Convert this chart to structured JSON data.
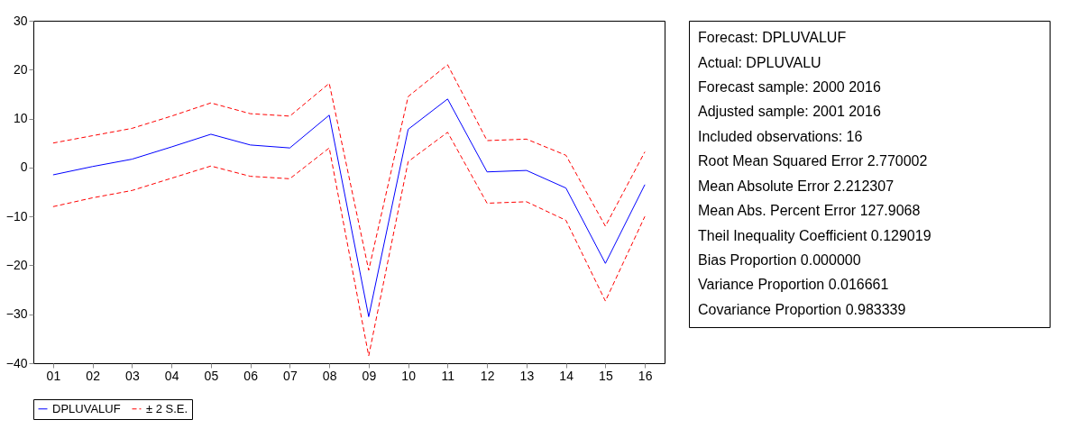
{
  "chart_data": {
    "type": "line",
    "categories": [
      "01",
      "02",
      "03",
      "04",
      "05",
      "06",
      "07",
      "08",
      "09",
      "10",
      "11",
      "12",
      "13",
      "14",
      "15",
      "16"
    ],
    "series": [
      {
        "name": "DPLUVALUF",
        "color": "#0000ff",
        "line_style": "solid",
        "values": [
          -1.5,
          0.2,
          1.7,
          4.2,
          6.8,
          4.6,
          4.0,
          10.7,
          -30.5,
          7.8,
          14.0,
          -0.9,
          -0.6,
          -4.2,
          -19.6,
          -3.5
        ]
      },
      {
        "name": "± 2 S.E.",
        "color": "#ff0000",
        "line_style": "dashed",
        "values": [
          5.0,
          6.5,
          8.0,
          10.5,
          13.2,
          11.0,
          10.5,
          17.2,
          -21.0,
          14.5,
          21.0,
          5.5,
          5.8,
          2.5,
          -12.0,
          3.2
        ]
      },
      {
        "color": "#ff0000",
        "line_style": "dashed",
        "values": [
          -8.0,
          -6.2,
          -4.7,
          -2.2,
          0.3,
          -1.8,
          -2.3,
          4.0,
          -38.5,
          1.2,
          7.2,
          -7.3,
          -7.0,
          -10.8,
          -27.3,
          -10.0
        ]
      }
    ],
    "ylim": [
      -40,
      30
    ],
    "yticks": [
      -40,
      -30,
      -20,
      -10,
      0,
      10,
      20,
      30
    ],
    "grid": false,
    "legend": "bottom",
    "marker": "none",
    "annotations": [
      "Forecast: DPLUVALUF",
      "Actual: DPLUVALU",
      "Forecast sample: 2000 2016",
      "Adjusted sample: 2001 2016",
      "Included observations: 16",
      "Root Mean Squared Error 2.770002",
      "Mean Absolute Error 2.212307",
      "Mean Abs. Percent Error 127.9068",
      "Theil Inequality Coefficient 0.129019",
      "Bias Proportion 0.000000",
      "Variance Proportion 0.016661",
      "Covariance Proportion 0.983339"
    ]
  }
}
